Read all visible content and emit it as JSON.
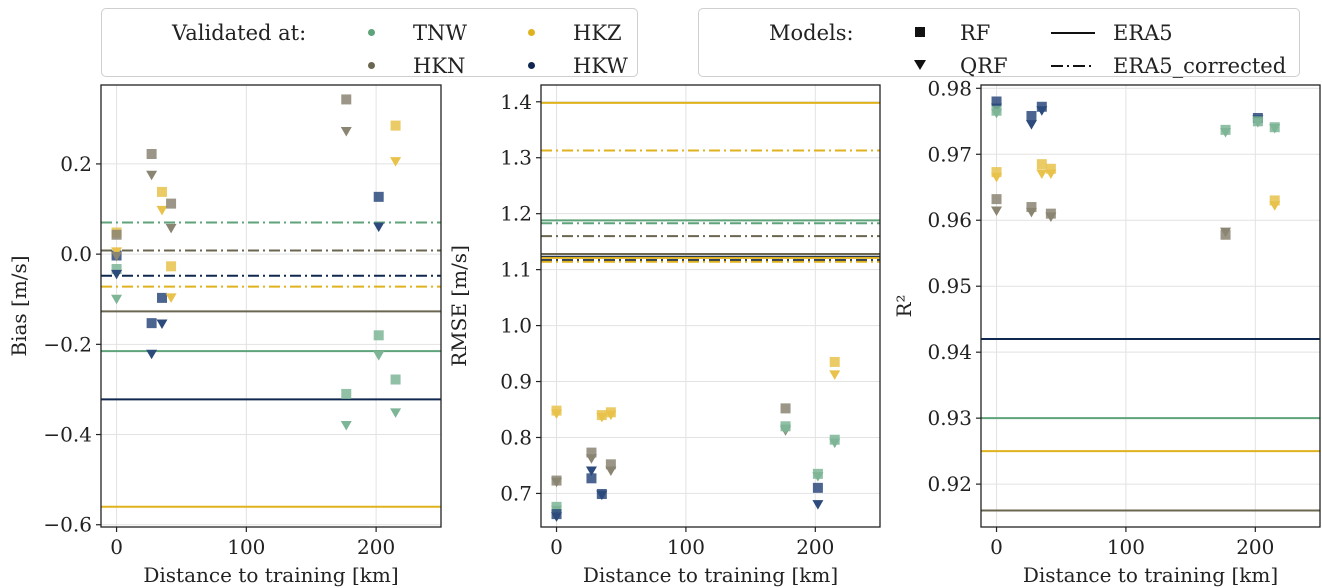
{
  "legends": {
    "validated": {
      "title": "Validated at:",
      "items": [
        {
          "label": "TNW",
          "color": "#5fa37a"
        },
        {
          "label": "HKZ",
          "color": "#e0b21d"
        },
        {
          "label": "HKN",
          "color": "#6b6650"
        },
        {
          "label": "HKW",
          "color": "#10284f"
        }
      ]
    },
    "models": {
      "title": "Models:",
      "markers": [
        {
          "label": "RF",
          "marker": "square"
        },
        {
          "label": "QRF",
          "marker": "triangle-down"
        }
      ],
      "lines": [
        {
          "label": "ERA5",
          "style": "solid"
        },
        {
          "label": "ERA5_corrected",
          "style": "dashdot"
        }
      ]
    }
  },
  "stations": {
    "TNW": {
      "color": "#5fa37a",
      "marker_color": "#7db596"
    },
    "HKZ": {
      "color": "#e0b21d",
      "marker_color": "#e8c24a"
    },
    "HKN": {
      "color": "#6b6650",
      "marker_color": "#8a8472"
    },
    "HKW": {
      "color": "#10284f",
      "marker_color": "#2c4a7c"
    }
  },
  "chart_data": [
    {
      "type": "scatter",
      "xlabel": "Distance to training [km]",
      "ylabel": "Bias [m/s]",
      "xlim": [
        -12,
        250
      ],
      "ylim": [
        -0.605,
        0.375
      ],
      "xticks": [
        0,
        100,
        200
      ],
      "xtick_labels": [
        "0",
        "100",
        "200"
      ],
      "yticks": [
        -0.6,
        -0.4,
        -0.2,
        0.0,
        0.2
      ],
      "ytick_labels": [
        "−0.6",
        "−0.4",
        "−0.2",
        "0.0",
        "0.2"
      ],
      "grid": true,
      "hlines": [
        {
          "station": "TNW",
          "style": "dashdot",
          "y": 0.07
        },
        {
          "station": "HKN",
          "style": "dashdot",
          "y": 0.008
        },
        {
          "station": "HKW",
          "style": "dashdot",
          "y": -0.048
        },
        {
          "station": "HKZ",
          "style": "dashdot",
          "y": -0.072
        },
        {
          "station": "HKN",
          "style": "solid",
          "y": -0.127
        },
        {
          "station": "TNW",
          "style": "solid",
          "y": -0.215
        },
        {
          "station": "HKW",
          "style": "solid",
          "y": -0.322
        },
        {
          "station": "HKZ",
          "style": "solid",
          "y": -0.56
        }
      ],
      "points": [
        {
          "station": "HKZ",
          "model": "RF",
          "x": 0,
          "y": 0.048
        },
        {
          "station": "HKN",
          "model": "RF",
          "x": 0,
          "y": 0.043
        },
        {
          "station": "HKW",
          "model": "RF",
          "x": 0,
          "y": -0.003
        },
        {
          "station": "TNW",
          "model": "RF",
          "x": 0,
          "y": -0.033
        },
        {
          "station": "HKZ",
          "model": "QRF",
          "x": 0,
          "y": 0.005
        },
        {
          "station": "HKN",
          "model": "QRF",
          "x": 0,
          "y": -0.005
        },
        {
          "station": "HKW",
          "model": "QRF",
          "x": 0,
          "y": -0.045
        },
        {
          "station": "TNW",
          "model": "QRF",
          "x": 0,
          "y": -0.1
        },
        {
          "station": "HKN",
          "model": "RF",
          "x": 27,
          "y": 0.222
        },
        {
          "station": "HKN",
          "model": "QRF",
          "x": 27,
          "y": 0.175
        },
        {
          "station": "HKW",
          "model": "RF",
          "x": 27,
          "y": -0.153
        },
        {
          "station": "HKW",
          "model": "QRF",
          "x": 27,
          "y": -0.222
        },
        {
          "station": "HKZ",
          "model": "RF",
          "x": 35,
          "y": 0.138
        },
        {
          "station": "HKZ",
          "model": "QRF",
          "x": 35,
          "y": 0.097
        },
        {
          "station": "HKW",
          "model": "RF",
          "x": 35,
          "y": -0.097
        },
        {
          "station": "HKW",
          "model": "QRF",
          "x": 35,
          "y": -0.155
        },
        {
          "station": "HKN",
          "model": "RF",
          "x": 42,
          "y": 0.112
        },
        {
          "station": "HKN",
          "model": "QRF",
          "x": 42,
          "y": 0.057
        },
        {
          "station": "HKZ",
          "model": "RF",
          "x": 42,
          "y": -0.027
        },
        {
          "station": "HKZ",
          "model": "QRF",
          "x": 42,
          "y": -0.097
        },
        {
          "station": "HKN",
          "model": "RF",
          "x": 177,
          "y": 0.343
        },
        {
          "station": "HKN",
          "model": "QRF",
          "x": 177,
          "y": 0.272
        },
        {
          "station": "TNW",
          "model": "RF",
          "x": 177,
          "y": -0.31
        },
        {
          "station": "TNW",
          "model": "QRF",
          "x": 177,
          "y": -0.38
        },
        {
          "station": "HKW",
          "model": "RF",
          "x": 202,
          "y": 0.127
        },
        {
          "station": "HKW",
          "model": "QRF",
          "x": 202,
          "y": 0.06
        },
        {
          "station": "TNW",
          "model": "RF",
          "x": 202,
          "y": -0.18
        },
        {
          "station": "TNW",
          "model": "QRF",
          "x": 202,
          "y": -0.225
        },
        {
          "station": "HKZ",
          "model": "RF",
          "x": 215,
          "y": 0.285
        },
        {
          "station": "HKZ",
          "model": "QRF",
          "x": 215,
          "y": 0.205
        },
        {
          "station": "TNW",
          "model": "RF",
          "x": 215,
          "y": -0.278
        },
        {
          "station": "TNW",
          "model": "QRF",
          "x": 215,
          "y": -0.352
        }
      ]
    },
    {
      "type": "scatter",
      "xlabel": "Distance to training [km]",
      "ylabel": "RMSE [m/s]",
      "xlim": [
        -12,
        250
      ],
      "ylim": [
        0.64,
        1.43
      ],
      "xticks": [
        0,
        100,
        200
      ],
      "xtick_labels": [
        "0",
        "100",
        "200"
      ],
      "yticks": [
        0.7,
        0.8,
        0.9,
        1.0,
        1.1,
        1.2,
        1.3,
        1.4
      ],
      "ytick_labels": [
        "0.7",
        "0.8",
        "0.9",
        "1.0",
        "1.1",
        "1.2",
        "1.3",
        "1.4"
      ],
      "grid": true,
      "hlines": [
        {
          "station": "HKZ",
          "style": "solid",
          "y": 1.398
        },
        {
          "station": "HKZ",
          "style": "dashdot",
          "y": 1.313
        },
        {
          "station": "TNW",
          "style": "solid",
          "y": 1.188
        },
        {
          "station": "TNW",
          "style": "dashdot",
          "y": 1.183
        },
        {
          "station": "HKN",
          "style": "dashdot",
          "y": 1.16
        },
        {
          "station": "HKN",
          "style": "solid",
          "y": 1.128
        },
        {
          "station": "HKW",
          "style": "solid",
          "y": 1.123
        },
        {
          "station": "HKW",
          "style": "dashdot",
          "y": 1.117
        },
        {
          "station": "HKZ",
          "style": "solid",
          "y": 1.121
        },
        {
          "station": "HKZ",
          "style": "dashdot",
          "y": 1.114
        }
      ],
      "points": [
        {
          "station": "HKZ",
          "model": "RF",
          "x": 0,
          "y": 0.848
        },
        {
          "station": "HKZ",
          "model": "QRF",
          "x": 0,
          "y": 0.842
        },
        {
          "station": "HKN",
          "model": "RF",
          "x": 0,
          "y": 0.723
        },
        {
          "station": "HKN",
          "model": "QRF",
          "x": 0,
          "y": 0.72
        },
        {
          "station": "TNW",
          "model": "RF",
          "x": 0,
          "y": 0.676
        },
        {
          "station": "TNW",
          "model": "QRF",
          "x": 0,
          "y": 0.67
        },
        {
          "station": "HKW",
          "model": "RF",
          "x": 0,
          "y": 0.663
        },
        {
          "station": "HKW",
          "model": "QRF",
          "x": 0,
          "y": 0.658
        },
        {
          "station": "HKN",
          "model": "RF",
          "x": 27,
          "y": 0.773
        },
        {
          "station": "HKN",
          "model": "QRF",
          "x": 27,
          "y": 0.762
        },
        {
          "station": "HKW",
          "model": "RF",
          "x": 27,
          "y": 0.727
        },
        {
          "station": "HKW",
          "model": "QRF",
          "x": 27,
          "y": 0.74
        },
        {
          "station": "HKZ",
          "model": "RF",
          "x": 35,
          "y": 0.84
        },
        {
          "station": "HKZ",
          "model": "QRF",
          "x": 35,
          "y": 0.836
        },
        {
          "station": "HKW",
          "model": "RF",
          "x": 35,
          "y": 0.699
        },
        {
          "station": "HKW",
          "model": "QRF",
          "x": 35,
          "y": 0.697
        },
        {
          "station": "HKZ",
          "model": "RF",
          "x": 42,
          "y": 0.845
        },
        {
          "station": "HKZ",
          "model": "QRF",
          "x": 42,
          "y": 0.84
        },
        {
          "station": "HKN",
          "model": "RF",
          "x": 42,
          "y": 0.752
        },
        {
          "station": "HKN",
          "model": "QRF",
          "x": 42,
          "y": 0.74
        },
        {
          "station": "HKN",
          "model": "RF",
          "x": 177,
          "y": 0.852
        },
        {
          "station": "HKN",
          "model": "QRF",
          "x": 177,
          "y": 0.812
        },
        {
          "station": "TNW",
          "model": "RF",
          "x": 177,
          "y": 0.82
        },
        {
          "station": "TNW",
          "model": "QRF",
          "x": 177,
          "y": 0.815
        },
        {
          "station": "TNW",
          "model": "RF",
          "x": 202,
          "y": 0.735
        },
        {
          "station": "TNW",
          "model": "QRF",
          "x": 202,
          "y": 0.73
        },
        {
          "station": "HKW",
          "model": "RF",
          "x": 202,
          "y": 0.71
        },
        {
          "station": "HKW",
          "model": "QRF",
          "x": 202,
          "y": 0.68
        },
        {
          "station": "HKZ",
          "model": "RF",
          "x": 215,
          "y": 0.935
        },
        {
          "station": "HKZ",
          "model": "QRF",
          "x": 215,
          "y": 0.912
        },
        {
          "station": "TNW",
          "model": "RF",
          "x": 215,
          "y": 0.796
        },
        {
          "station": "TNW",
          "model": "QRF",
          "x": 215,
          "y": 0.79
        }
      ]
    },
    {
      "type": "scatter",
      "xlabel": "Distance to training [km]",
      "ylabel": "R²",
      "xlim": [
        -12,
        250
      ],
      "ylim": [
        0.9135,
        0.9805
      ],
      "xticks": [
        0,
        100,
        200
      ],
      "xtick_labels": [
        "0",
        "100",
        "200"
      ],
      "yticks": [
        0.92,
        0.93,
        0.94,
        0.95,
        0.96,
        0.97,
        0.98
      ],
      "ytick_labels": [
        "0.92",
        "0.93",
        "0.94",
        "0.95",
        "0.96",
        "0.97",
        "0.98"
      ],
      "grid": true,
      "hlines": [
        {
          "station": "HKW",
          "style": "solid",
          "y": 0.942
        },
        {
          "station": "TNW",
          "style": "solid",
          "y": 0.93
        },
        {
          "station": "HKZ",
          "style": "solid",
          "y": 0.925
        },
        {
          "station": "HKN",
          "style": "solid",
          "y": 0.916
        }
      ],
      "points": [
        {
          "station": "HKW",
          "model": "RF",
          "x": 0,
          "y": 0.978
        },
        {
          "station": "HKW",
          "model": "QRF",
          "x": 0,
          "y": 0.977
        },
        {
          "station": "TNW",
          "model": "RF",
          "x": 0,
          "y": 0.9766
        },
        {
          "station": "TNW",
          "model": "QRF",
          "x": 0,
          "y": 0.9762
        },
        {
          "station": "HKZ",
          "model": "RF",
          "x": 0,
          "y": 0.9673
        },
        {
          "station": "HKZ",
          "model": "QRF",
          "x": 0,
          "y": 0.9665
        },
        {
          "station": "HKN",
          "model": "RF",
          "x": 0,
          "y": 0.9632
        },
        {
          "station": "HKN",
          "model": "QRF",
          "x": 0,
          "y": 0.9614
        },
        {
          "station": "HKW",
          "model": "RF",
          "x": 27,
          "y": 0.9758
        },
        {
          "station": "HKW",
          "model": "QRF",
          "x": 27,
          "y": 0.9745
        },
        {
          "station": "HKN",
          "model": "RF",
          "x": 27,
          "y": 0.962
        },
        {
          "station": "HKN",
          "model": "QRF",
          "x": 27,
          "y": 0.9612
        },
        {
          "station": "HKW",
          "model": "RF",
          "x": 35,
          "y": 0.9772
        },
        {
          "station": "HKW",
          "model": "QRF",
          "x": 35,
          "y": 0.9766
        },
        {
          "station": "HKZ",
          "model": "RF",
          "x": 35,
          "y": 0.9685
        },
        {
          "station": "HKZ",
          "model": "QRF",
          "x": 35,
          "y": 0.967
        },
        {
          "station": "HKZ",
          "model": "RF",
          "x": 42,
          "y": 0.9678
        },
        {
          "station": "HKZ",
          "model": "QRF",
          "x": 42,
          "y": 0.967
        },
        {
          "station": "HKN",
          "model": "RF",
          "x": 42,
          "y": 0.961
        },
        {
          "station": "HKN",
          "model": "QRF",
          "x": 42,
          "y": 0.9605
        },
        {
          "station": "TNW",
          "model": "RF",
          "x": 177,
          "y": 0.9737
        },
        {
          "station": "TNW",
          "model": "QRF",
          "x": 177,
          "y": 0.9733
        },
        {
          "station": "HKN",
          "model": "RF",
          "x": 177,
          "y": 0.9578
        },
        {
          "station": "HKN",
          "model": "QRF",
          "x": 177,
          "y": 0.9582
        },
        {
          "station": "HKW",
          "model": "RF",
          "x": 202,
          "y": 0.9755
        },
        {
          "station": "HKW",
          "model": "QRF",
          "x": 202,
          "y": 0.9752
        },
        {
          "station": "TNW",
          "model": "RF",
          "x": 202,
          "y": 0.975
        },
        {
          "station": "TNW",
          "model": "QRF",
          "x": 202,
          "y": 0.9748
        },
        {
          "station": "TNW",
          "model": "RF",
          "x": 215,
          "y": 0.9741
        },
        {
          "station": "TNW",
          "model": "QRF",
          "x": 215,
          "y": 0.9739
        },
        {
          "station": "HKZ",
          "model": "RF",
          "x": 215,
          "y": 0.963
        },
        {
          "station": "HKZ",
          "model": "QRF",
          "x": 215,
          "y": 0.9622
        }
      ]
    }
  ]
}
